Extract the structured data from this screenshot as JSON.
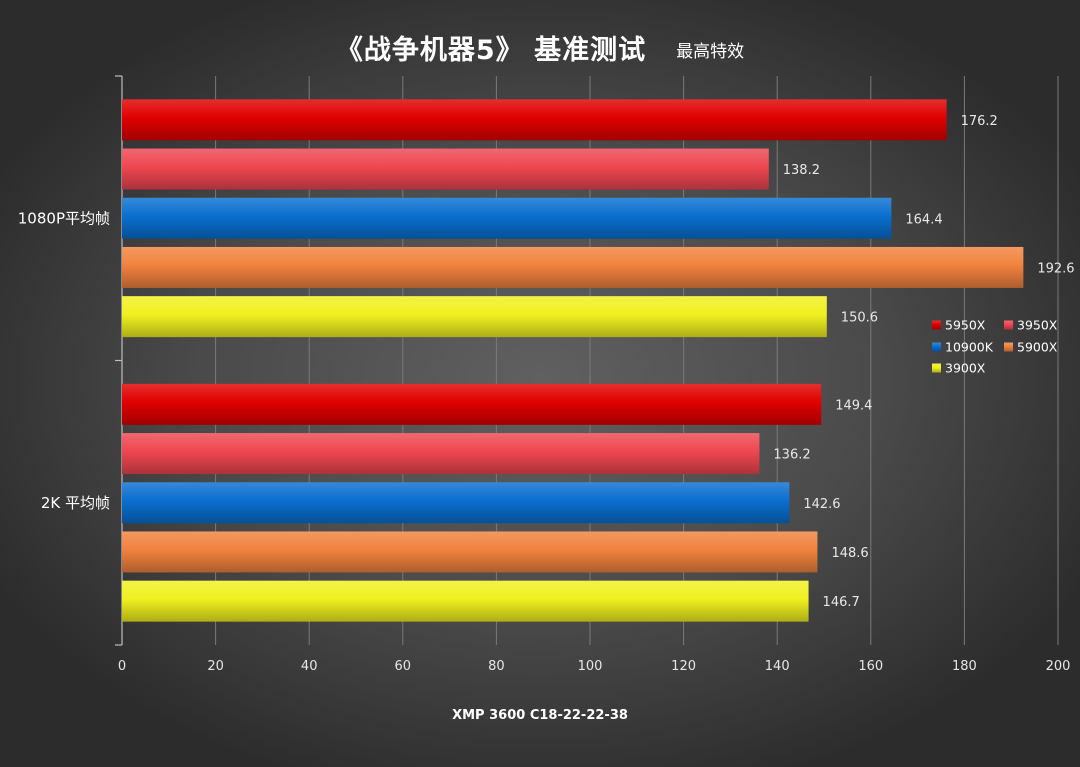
{
  "chart_data": {
    "type": "bar",
    "orientation": "horizontal",
    "title": "《战争机器5》 基准测试",
    "subtitle": "最高特效",
    "xlabel": "XMP 3600 C18-22-22-38",
    "ylabel": "",
    "categories": [
      "1080P平均帧",
      "2K 平均帧"
    ],
    "series": [
      {
        "name": "5950X",
        "color": "#e00000",
        "values": [
          176.2,
          149.4
        ]
      },
      {
        "name": "3950X",
        "color": "#ee4750",
        "values": [
          138.2,
          136.2
        ]
      },
      {
        "name": "10900K",
        "color": "#0a6fcf",
        "values": [
          164.4,
          142.6
        ]
      },
      {
        "name": "5900X",
        "color": "#f0823e",
        "values": [
          192.6,
          148.6
        ]
      },
      {
        "name": "3900X",
        "color": "#f0f020",
        "values": [
          150.6,
          146.7
        ]
      }
    ],
    "xlim": [
      0,
      200
    ],
    "xticks": [
      0,
      20,
      40,
      60,
      80,
      100,
      120,
      140,
      160,
      180,
      200
    ],
    "grid": true,
    "legend": "right"
  }
}
